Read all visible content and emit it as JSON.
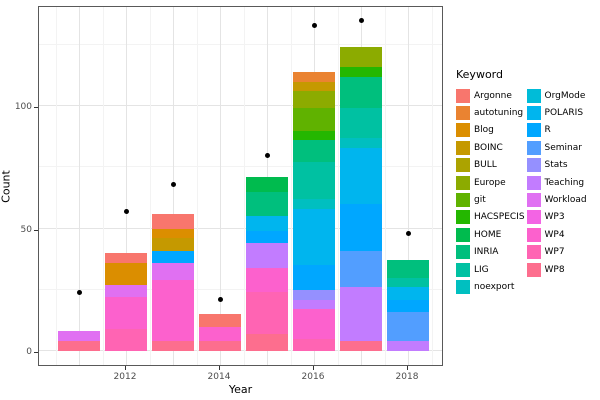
{
  "chart_data": {
    "type": "bar",
    "stacked": true,
    "title": "",
    "xlabel": "Year",
    "ylabel": "Count",
    "ylim": [
      0,
      141
    ],
    "grid": true,
    "legend_position": "right",
    "legend_title": "Keyword",
    "x_years": [
      2011,
      2012,
      2013,
      2014,
      2015,
      2016,
      2017,
      2018
    ],
    "x_ticks": [
      2012,
      2014,
      2016,
      2018
    ],
    "y_ticks": [
      0,
      50,
      100
    ],
    "y_minor_ticks": [
      25,
      75,
      125
    ],
    "keywords": [
      {
        "name": "Argonne",
        "color": "#F8766D"
      },
      {
        "name": "autotuning",
        "color": "#EA8331"
      },
      {
        "name": "Blog",
        "color": "#DB8E00"
      },
      {
        "name": "BOINC",
        "color": "#C59900"
      },
      {
        "name": "BULL",
        "color": "#ACA300"
      },
      {
        "name": "Europe",
        "color": "#8CAB00"
      },
      {
        "name": "git",
        "color": "#60B200"
      },
      {
        "name": "HACSPECIS",
        "color": "#24B700"
      },
      {
        "name": "HOME",
        "color": "#00BB4E"
      },
      {
        "name": "INRIA",
        "color": "#00BF7D"
      },
      {
        "name": "LIG",
        "color": "#00C1A2"
      },
      {
        "name": "noexport",
        "color": "#00BFC0"
      },
      {
        "name": "OrgMode",
        "color": "#00BCD8"
      },
      {
        "name": "POLARIS",
        "color": "#00B5EE"
      },
      {
        "name": "R",
        "color": "#00A7FF"
      },
      {
        "name": "Seminar",
        "color": "#529EFF"
      },
      {
        "name": "Stats",
        "color": "#9590FF"
      },
      {
        "name": "Teaching",
        "color": "#C27CFF"
      },
      {
        "name": "Workload",
        "color": "#E070F2"
      },
      {
        "name": "WP3",
        "color": "#F364E4"
      },
      {
        "name": "WP4",
        "color": "#FC61CD"
      },
      {
        "name": "WP7",
        "color": "#FF64B3"
      },
      {
        "name": "WP8",
        "color": "#FD6E8E"
      }
    ],
    "bars": [
      {
        "year": 2011,
        "total": 8,
        "segments": [
          {
            "keyword": "WP8",
            "value": 4
          },
          {
            "keyword": "Workload",
            "value": 4
          }
        ]
      },
      {
        "year": 2012,
        "total": 40,
        "segments": [
          {
            "keyword": "WP7",
            "value": 9
          },
          {
            "keyword": "WP4",
            "value": 13
          },
          {
            "keyword": "Workload",
            "value": 5
          },
          {
            "keyword": "Blog",
            "value": 9
          },
          {
            "keyword": "Argonne",
            "value": 4
          }
        ]
      },
      {
        "year": 2013,
        "total": 56,
        "segments": [
          {
            "keyword": "WP8",
            "value": 4
          },
          {
            "keyword": "WP4",
            "value": 25
          },
          {
            "keyword": "Workload",
            "value": 7
          },
          {
            "keyword": "R",
            "value": 5
          },
          {
            "keyword": "BOINC",
            "value": 5
          },
          {
            "keyword": "Blog",
            "value": 4
          },
          {
            "keyword": "Argonne",
            "value": 6
          }
        ]
      },
      {
        "year": 2014,
        "total": 15,
        "segments": [
          {
            "keyword": "WP8",
            "value": 4
          },
          {
            "keyword": "WP4",
            "value": 6
          },
          {
            "keyword": "Argonne",
            "value": 5
          }
        ]
      },
      {
        "year": 2015,
        "total": 71,
        "segments": [
          {
            "keyword": "WP8",
            "value": 7
          },
          {
            "keyword": "WP7",
            "value": 17
          },
          {
            "keyword": "WP4",
            "value": 10
          },
          {
            "keyword": "Teaching",
            "value": 10
          },
          {
            "keyword": "R",
            "value": 5
          },
          {
            "keyword": "POLARIS",
            "value": 6
          },
          {
            "keyword": "INRIA",
            "value": 10
          },
          {
            "keyword": "HOME",
            "value": 6
          }
        ]
      },
      {
        "year": 2016,
        "total": 114,
        "segments": [
          {
            "keyword": "WP7",
            "value": 5
          },
          {
            "keyword": "WP4",
            "value": 12
          },
          {
            "keyword": "Teaching",
            "value": 4
          },
          {
            "keyword": "Stats",
            "value": 4
          },
          {
            "keyword": "R",
            "value": 10
          },
          {
            "keyword": "POLARIS",
            "value": 23
          },
          {
            "keyword": "noexport",
            "value": 4
          },
          {
            "keyword": "LIG",
            "value": 15
          },
          {
            "keyword": "INRIA",
            "value": 9
          },
          {
            "keyword": "HACSPECIS",
            "value": 4
          },
          {
            "keyword": "git",
            "value": 9
          },
          {
            "keyword": "Europe",
            "value": 7
          },
          {
            "keyword": "BOINC",
            "value": 4
          },
          {
            "keyword": "autotuning",
            "value": 4
          }
        ]
      },
      {
        "year": 2017,
        "total": 124,
        "segments": [
          {
            "keyword": "WP8",
            "value": 4
          },
          {
            "keyword": "Teaching",
            "value": 22
          },
          {
            "keyword": "Seminar",
            "value": 15
          },
          {
            "keyword": "R",
            "value": 19
          },
          {
            "keyword": "POLARIS",
            "value": 23
          },
          {
            "keyword": "noexport",
            "value": 4
          },
          {
            "keyword": "LIG",
            "value": 12
          },
          {
            "keyword": "INRIA",
            "value": 13
          },
          {
            "keyword": "HACSPECIS",
            "value": 4
          },
          {
            "keyword": "Europe",
            "value": 8
          }
        ]
      },
      {
        "year": 2018,
        "total": 37,
        "segments": [
          {
            "keyword": "Teaching",
            "value": 4
          },
          {
            "keyword": "Seminar",
            "value": 12
          },
          {
            "keyword": "R",
            "value": 5
          },
          {
            "keyword": "POLARIS",
            "value": 5
          },
          {
            "keyword": "LIG",
            "value": 4
          },
          {
            "keyword": "INRIA",
            "value": 7
          }
        ]
      }
    ],
    "points": [
      {
        "year": 2011,
        "value": 24
      },
      {
        "year": 2012,
        "value": 57
      },
      {
        "year": 2013,
        "value": 68
      },
      {
        "year": 2014,
        "value": 21
      },
      {
        "year": 2015,
        "value": 80
      },
      {
        "year": 2016,
        "value": 133
      },
      {
        "year": 2017,
        "value": 135
      },
      {
        "year": 2018,
        "value": 48
      }
    ]
  }
}
